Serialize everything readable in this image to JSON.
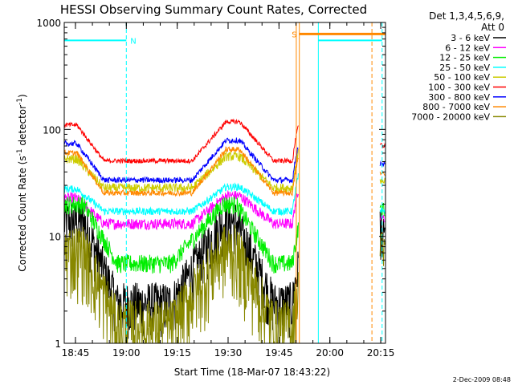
{
  "chart_data": {
    "type": "line",
    "title": "HESSI Observing Summary Count Rates, Corrected",
    "xlabel": "Start Time (18-Mar-07 18:43:22)",
    "ylabel_main": "Corrected Count Rate (s",
    "ylabel_sup1": "-1",
    "ylabel_mid": " detector",
    "ylabel_sup2": "-1",
    "ylabel_end": ")",
    "yscale": "log",
    "ylim": [
      1,
      1000
    ],
    "xlim": [
      -1.7,
      93
    ],
    "x_ticks": [
      {
        "label": "18:45",
        "value": 1.6
      },
      {
        "label": "19:00",
        "value": 16.6
      },
      {
        "label": "19:15",
        "value": 31.6
      },
      {
        "label": "19:30",
        "value": 46.6
      },
      {
        "label": "19:45",
        "value": 61.6
      },
      {
        "label": "20:00",
        "value": 76.6
      },
      {
        "label": "20:15",
        "value": 91.6
      }
    ],
    "y_ticks": [
      {
        "label": "1",
        "value": 1
      },
      {
        "label": "10",
        "value": 10
      },
      {
        "label": "100",
        "value": 100
      },
      {
        "label": "1000",
        "value": 1000
      }
    ],
    "legend_position": "right",
    "legend_header_1": "Det 1,3,4,5,6,9,",
    "legend_header_2": "Att 0",
    "series": [
      {
        "name": "3 - 6 keV",
        "color": "#000000",
        "lo": 2.4,
        "hi": 14,
        "noise": 0.55
      },
      {
        "name": "6 - 12 keV",
        "color": "#ff00ff",
        "lo": 13,
        "hi": 24,
        "noise": 0.12
      },
      {
        "name": "12 - 25 keV",
        "color": "#00ee00",
        "lo": 5.6,
        "hi": 20,
        "noise": 0.2
      },
      {
        "name": "25 - 50 keV",
        "color": "#00ffff",
        "lo": 17,
        "hi": 29,
        "noise": 0.08
      },
      {
        "name": "50 - 100 keV",
        "color": "#cccc00",
        "lo": 28,
        "hi": 56,
        "noise": 0.1
      },
      {
        "name": "100 - 300 keV",
        "color": "#ff0000",
        "lo": 50,
        "hi": 118,
        "noise": 0.05
      },
      {
        "name": "300 - 800 keV",
        "color": "#0000ff",
        "lo": 33,
        "hi": 79,
        "noise": 0.06
      },
      {
        "name": "800 - 7000 keV",
        "color": "#ff8800",
        "lo": 25,
        "hi": 65,
        "noise": 0.06
      },
      {
        "name": "7000 - 20000 keV",
        "color": "#888800",
        "lo": 1.5,
        "hi": 7.5,
        "noise": 0.7
      }
    ],
    "flags": [
      {
        "label": "N",
        "color": "#00ffff",
        "level": 680,
        "start": -1.7,
        "end": 16.6
      },
      {
        "label": "S",
        "color": "#ff8800",
        "level": 780,
        "start": 67.5,
        "end": 93
      }
    ],
    "data_gap_start": 67.3,
    "resume_start": 91.4,
    "timestamp": "2-Dec-2009 08:48"
  }
}
